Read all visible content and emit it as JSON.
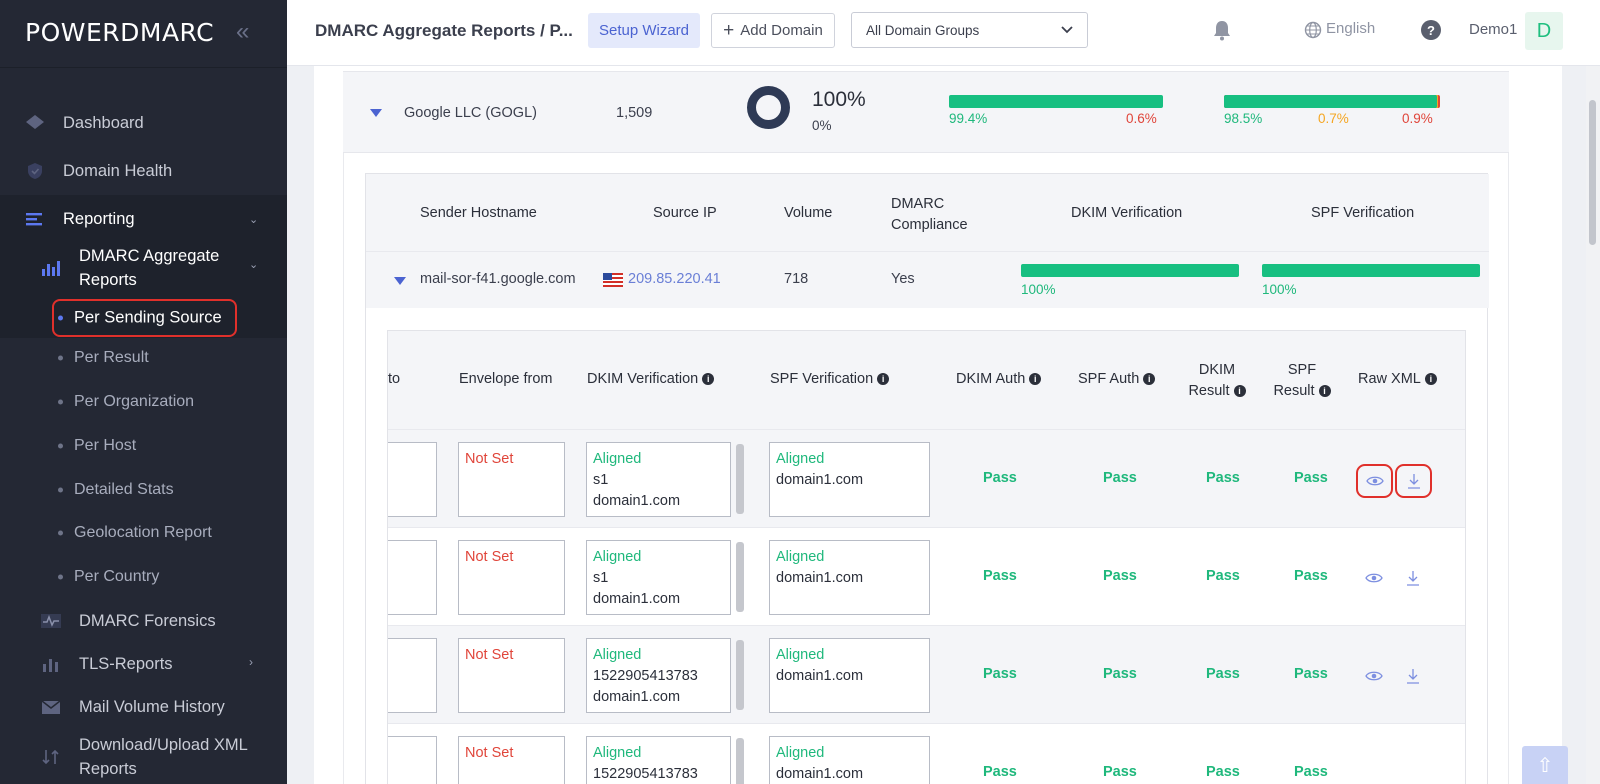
{
  "sidebar": {
    "logo": "POWERDMARC",
    "items": {
      "dashboard": "Dashboard",
      "domain_health": "Domain Health",
      "reporting": "Reporting",
      "dmarc_aggregate": "DMARC Aggregate Reports",
      "forensics": "DMARC Forensics",
      "tls": "TLS-Reports",
      "mail_volume": "Mail Volume History",
      "download_upload": "Download/Upload XML Reports"
    },
    "sub_items": [
      "Per Sending Source",
      "Per Result",
      "Per Organization",
      "Per Host",
      "Detailed Stats",
      "Geolocation Report",
      "Per Country"
    ]
  },
  "header": {
    "title": "DMARC Aggregate Reports / P...",
    "setup_wizard": "Setup Wizard",
    "add_domain": "Add Domain",
    "domain_groups": "All Domain Groups",
    "language": "English",
    "user": "Demo1",
    "avatar_letter": "D"
  },
  "org": {
    "name": "Google LLC (GOGL)",
    "volume": "1,509",
    "compliance_pct": "100%",
    "compliance_sub": "0%",
    "dkim_pass": "99.4%",
    "dkim_fail": "0.6%",
    "spf_pass": "98.5%",
    "spf_mid": "0.7%",
    "spf_fail": "0.9%",
    "dkim_pass_frac": 0.994,
    "spf_pass_frac": 0.985
  },
  "host_table": {
    "headers": {
      "hostname": "Sender Hostname",
      "source_ip": "Source IP",
      "volume": "Volume",
      "compliance": "DMARC Compliance",
      "dkim": "DKIM Verification",
      "spf": "SPF Verification"
    },
    "row": {
      "hostname": "mail-sor-f41.google.com",
      "ip": "209.85.220.41",
      "volume": "718",
      "compliance": "Yes",
      "dkim_pct": "100%",
      "spf_pct": "100%"
    }
  },
  "detail_table": {
    "headers": {
      "to": "to",
      "envelope_from": "Envelope from",
      "dkim_verification": "DKIM Verification",
      "spf_verification": "SPF Verification",
      "dkim_auth": "DKIM Auth",
      "spf_auth": "SPF Auth",
      "dkim_result": "DKIM Result",
      "spf_result": "SPF Result",
      "raw_xml": "Raw XML"
    },
    "rows": [
      {
        "envelope": "Not Set",
        "dkim": [
          "Aligned",
          "s1",
          "domain1.com"
        ],
        "spf": [
          "Aligned",
          "domain1.com"
        ],
        "dkim_auth": "Pass",
        "spf_auth": "Pass",
        "dkim_result": "Pass",
        "spf_result": "Pass"
      },
      {
        "envelope": "Not Set",
        "dkim": [
          "Aligned",
          "s1",
          "domain1.com"
        ],
        "spf": [
          "Aligned",
          "domain1.com"
        ],
        "dkim_auth": "Pass",
        "spf_auth": "Pass",
        "dkim_result": "Pass",
        "spf_result": "Pass"
      },
      {
        "envelope": "Not Set",
        "dkim": [
          "Aligned",
          "1522905413783",
          "domain1.com"
        ],
        "spf": [
          "Aligned",
          "domain1.com"
        ],
        "dkim_auth": "Pass",
        "spf_auth": "Pass",
        "dkim_result": "Pass",
        "spf_result": "Pass"
      },
      {
        "envelope": "Not Set",
        "dkim": [
          "Aligned",
          "1522905413783",
          ""
        ],
        "spf": [
          "Aligned",
          "domain1.com"
        ],
        "dkim_auth": "Pass",
        "spf_auth": "Pass",
        "dkim_result": "Pass",
        "spf_result": "Pass"
      }
    ]
  },
  "colors": {
    "sidebar_bg": "#242834",
    "accent": "#4b63d1",
    "pass_green": "#1fb87c",
    "fail_red": "#e0453a",
    "warn_orange": "#f5a623",
    "highlight_red": "#e0302b"
  }
}
